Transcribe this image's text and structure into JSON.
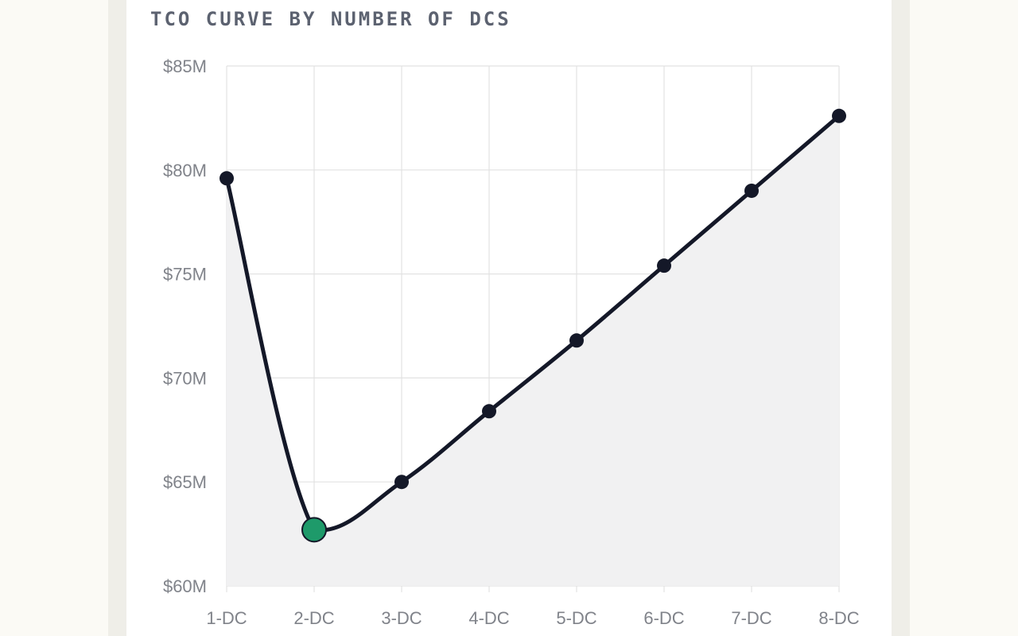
{
  "chart_data": {
    "type": "line",
    "title": "TCO CURVE BY NUMBER OF DCS",
    "xlabel": "",
    "ylabel": "",
    "categories": [
      "1-DC",
      "2-DC",
      "3-DC",
      "4-DC",
      "5-DC",
      "6-DC",
      "7-DC",
      "8-DC"
    ],
    "series": [
      {
        "values": [
          79.6,
          62.7,
          65.0,
          68.4,
          71.8,
          75.4,
          79.0,
          82.6
        ]
      }
    ],
    "ylim": [
      60,
      85
    ],
    "yticks": [
      60,
      65,
      70,
      75,
      80,
      85
    ],
    "ytick_labels": [
      "$60M",
      "$65M",
      "$70M",
      "$75M",
      "$80M",
      "$85M"
    ],
    "highlight": {
      "category": "2-DC",
      "color": "#1e9a6a"
    },
    "grid": true,
    "area_fill": true
  },
  "colors": {
    "line": "#141828",
    "area": "#f1f1f2",
    "grid": "#e2e2e2",
    "highlight": "#1e9a6a"
  }
}
